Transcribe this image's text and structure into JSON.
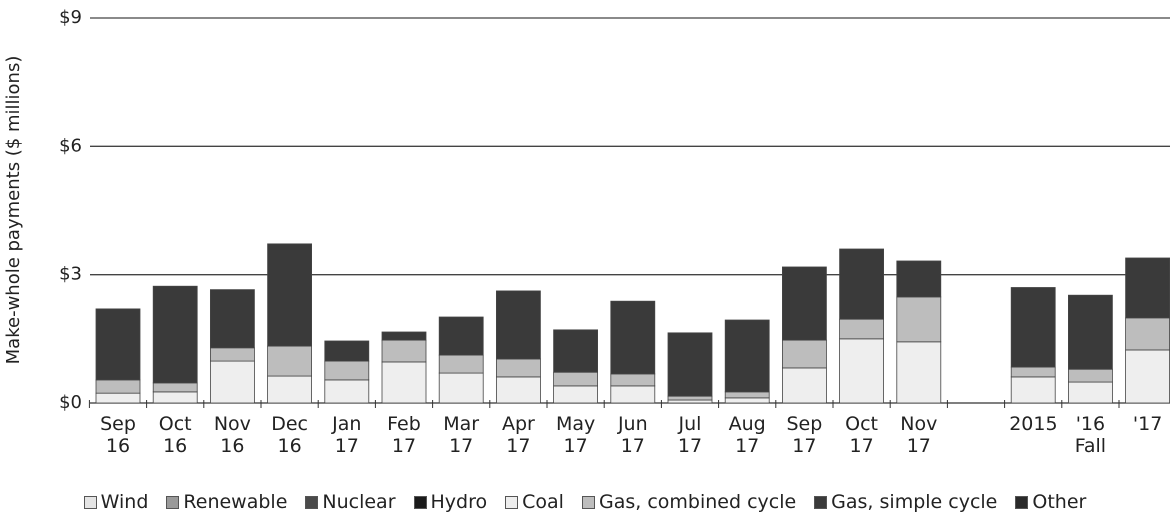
{
  "chart_data": {
    "type": "bar",
    "stacked": true,
    "y_label": "Make-whole payments ($ millions)",
    "categories": [
      "Sep 16",
      "Oct 16",
      "Nov 16",
      "Dec 16",
      "Jan 17",
      "Feb 17",
      "Mar 17",
      "Apr 17",
      "May 17",
      "Jun 17",
      "Jul 17",
      "Aug 17",
      "Sep 17",
      "Oct 17",
      "Nov 17",
      null,
      "2015",
      "'16 Fall",
      "'17"
    ],
    "ylim": [
      0,
      9
    ],
    "yticks": [
      {
        "value": 0,
        "label": "$0"
      },
      {
        "value": 3,
        "label": "$3"
      },
      {
        "value": 6,
        "label": "$6"
      },
      {
        "value": 9,
        "label": "$9"
      }
    ],
    "grid": true,
    "series": [
      {
        "name": "Wind",
        "color": "#e4e4e4",
        "values": [
          0,
          0,
          0,
          0,
          0,
          0,
          0,
          0,
          0,
          0,
          0,
          0,
          0,
          0,
          0,
          null,
          0,
          0,
          0
        ]
      },
      {
        "name": "Renewable",
        "color": "#9a9a9a",
        "values": [
          0,
          0,
          0,
          0,
          0,
          0,
          0,
          0,
          0,
          0,
          0,
          0,
          0,
          0,
          0,
          null,
          0,
          0,
          0
        ]
      },
      {
        "name": "Nuclear",
        "color": "#4a4a4a",
        "values": [
          0,
          0,
          0,
          0,
          0,
          0,
          0,
          0,
          0,
          0,
          0,
          0,
          0,
          0,
          0,
          null,
          0,
          0,
          0
        ]
      },
      {
        "name": "Hydro",
        "color": "#1a1a1a",
        "values": [
          0,
          0,
          0,
          0,
          0,
          0,
          0,
          0,
          0,
          0,
          0,
          0,
          0,
          0,
          0,
          null,
          0,
          0,
          0
        ]
      },
      {
        "name": "Coal",
        "color": "#eeeeee",
        "values": [
          0.23,
          0.26,
          0.98,
          0.63,
          0.54,
          0.96,
          0.7,
          0.61,
          0.4,
          0.4,
          0.07,
          0.12,
          0.82,
          1.5,
          1.43,
          null,
          0.61,
          0.49,
          1.24
        ]
      },
      {
        "name": "Gas, combined cycle",
        "color": "#bdbdbd",
        "values": [
          0.31,
          0.21,
          0.31,
          0.7,
          0.44,
          0.51,
          0.42,
          0.42,
          0.32,
          0.28,
          0.09,
          0.14,
          0.65,
          0.46,
          1.05,
          null,
          0.23,
          0.3,
          0.75
        ]
      },
      {
        "name": "Gas, simple cycle",
        "color": "#3a3a3a",
        "values": [
          1.66,
          2.26,
          1.36,
          2.39,
          0.47,
          0.19,
          0.89,
          1.59,
          0.99,
          1.7,
          1.48,
          1.68,
          1.71,
          1.64,
          0.84,
          null,
          1.86,
          1.73,
          1.4
        ]
      },
      {
        "name": "Other",
        "color": "#2a2a2a",
        "values": [
          0,
          0,
          0,
          0,
          0,
          0,
          0,
          0,
          0,
          0,
          0,
          0,
          0,
          0,
          0,
          null,
          0,
          0,
          0
        ]
      }
    ]
  }
}
